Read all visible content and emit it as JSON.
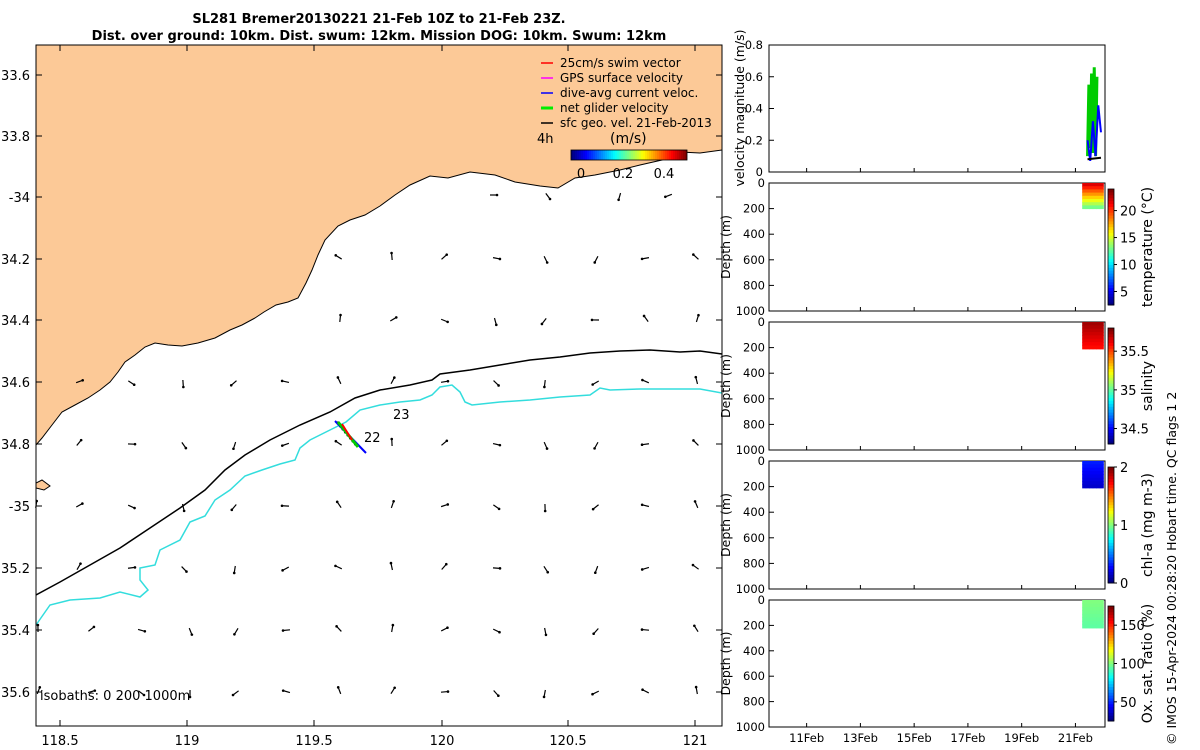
{
  "title": {
    "line1": "SL281 Bremer20130221 21-Feb 10Z to 21-Feb 23Z.",
    "line2": "Dist. over ground: 10km. Dist. swum: 12km. Mission DOG: 10km. Swum: 12km"
  },
  "credit": "© IMOS 15-Apr-2024 00:28:20 Hobart time. QC flags 1  2",
  "map": {
    "lon_ticks": [
      "118.5",
      "119",
      "119.5",
      "120",
      "120.5",
      "121"
    ],
    "lat_ticks": [
      "33.6",
      "33.8",
      "-34",
      "34.2",
      "34.4",
      "34.6",
      "34.8",
      "-35",
      "35.2",
      "35.4",
      "35.6"
    ],
    "legend": [
      {
        "label": "25cm/s swim vector",
        "color": "#ff0000"
      },
      {
        "label": "GPS surface velocity",
        "color": "#ff00ff"
      },
      {
        "label": "dive-avg current veloc.",
        "color": "#0000ff"
      },
      {
        "label": "net glider velocity",
        "color": "#00ee00"
      },
      {
        "label": "sfc geo. vel. 21-Feb-2013",
        "color": "#000000"
      }
    ],
    "colorbar_prefix": "4h",
    "colorbar_title": "(m/s)",
    "colorbar_ticks": [
      "0",
      "0.2",
      "0.4"
    ],
    "isobath_label": "isobaths: 0   200  1000m",
    "track_labels": [
      "23",
      "22"
    ],
    "land_color": "#fcc997",
    "isobath_200_color": "#000000",
    "isobath_1000_color": "#33dddd"
  },
  "chart_data": [
    {
      "type": "line",
      "title": "",
      "ylabel": "velocity magnitude (m/s)",
      "ylim": [
        0,
        0.8
      ],
      "y_ticks": [
        "0",
        "0.2",
        "0.4",
        "0.6",
        "0.8"
      ],
      "series": [
        {
          "color": "#00cc00",
          "x": [
            21.45,
            21.5,
            21.55,
            21.6,
            21.65,
            21.7,
            21.75,
            21.8
          ],
          "y": [
            0.1,
            0.55,
            0.15,
            0.62,
            0.12,
            0.66,
            0.1,
            0.6
          ]
        },
        {
          "color": "#0000ff",
          "x": [
            21.45,
            21.55,
            21.65,
            21.75,
            21.85,
            21.95
          ],
          "y": [
            0.2,
            0.07,
            0.32,
            0.1,
            0.42,
            0.25
          ]
        },
        {
          "color": "#000000",
          "x": [
            21.45,
            21.95
          ],
          "y": [
            0.08,
            0.09
          ]
        }
      ]
    },
    {
      "type": "scatter",
      "ylabel": "Depth (m)",
      "colorbar_label": "temperature (°C)",
      "y_ticks": [
        "0",
        "200",
        "400",
        "600",
        "800",
        "1000"
      ],
      "colorbar_ticks": [
        "5",
        "10",
        "15",
        "20"
      ],
      "colorbar_range": [
        2.5,
        24
      ],
      "summary": {
        "x_range": [
          21.4,
          22.0
        ],
        "depth_range": [
          0,
          200
        ],
        "top_value": 22,
        "bottom_value": 13
      }
    },
    {
      "type": "scatter",
      "ylabel": "Depth (m)",
      "colorbar_label": "salinity",
      "y_ticks": [
        "0",
        "200",
        "400",
        "600",
        "800",
        "1000"
      ],
      "colorbar_ticks": [
        "34.5",
        "35",
        "35.5"
      ],
      "colorbar_range": [
        34.3,
        35.8
      ],
      "summary": {
        "x_range": [
          21.4,
          22.0
        ],
        "depth_range": [
          0,
          210
        ],
        "top_value": 35.75,
        "bottom_value": 35.6
      }
    },
    {
      "type": "scatter",
      "ylabel": "Depth (m)",
      "colorbar_label": "chl-a (mg m-3)",
      "y_ticks": [
        "0",
        "200",
        "400",
        "600",
        "800",
        "1000"
      ],
      "colorbar_ticks": [
        "0",
        "1",
        "2"
      ],
      "colorbar_range": [
        0,
        2
      ],
      "summary": {
        "x_range": [
          21.4,
          22.0
        ],
        "depth_range": [
          0,
          210
        ],
        "top_value": 0.3,
        "bottom_value": 0.15
      }
    },
    {
      "type": "scatter",
      "ylabel": "Depth (m)",
      "colorbar_label": "Ox. sat. ratio (%)",
      "y_ticks": [
        "0",
        "200",
        "400",
        "600",
        "800",
        "1000"
      ],
      "colorbar_ticks": [
        "50",
        "100",
        "150"
      ],
      "colorbar_range": [
        25,
        175
      ],
      "summary": {
        "x_range": [
          21.4,
          22.0
        ],
        "depth_range": [
          0,
          220
        ],
        "top_value": 100,
        "bottom_value": 95
      }
    }
  ],
  "shared_x_ticks": [
    "11Feb",
    "13Feb",
    "15Feb",
    "17Feb",
    "19Feb",
    "21Feb"
  ],
  "shared_x_range": [
    9.6,
    22.1
  ]
}
